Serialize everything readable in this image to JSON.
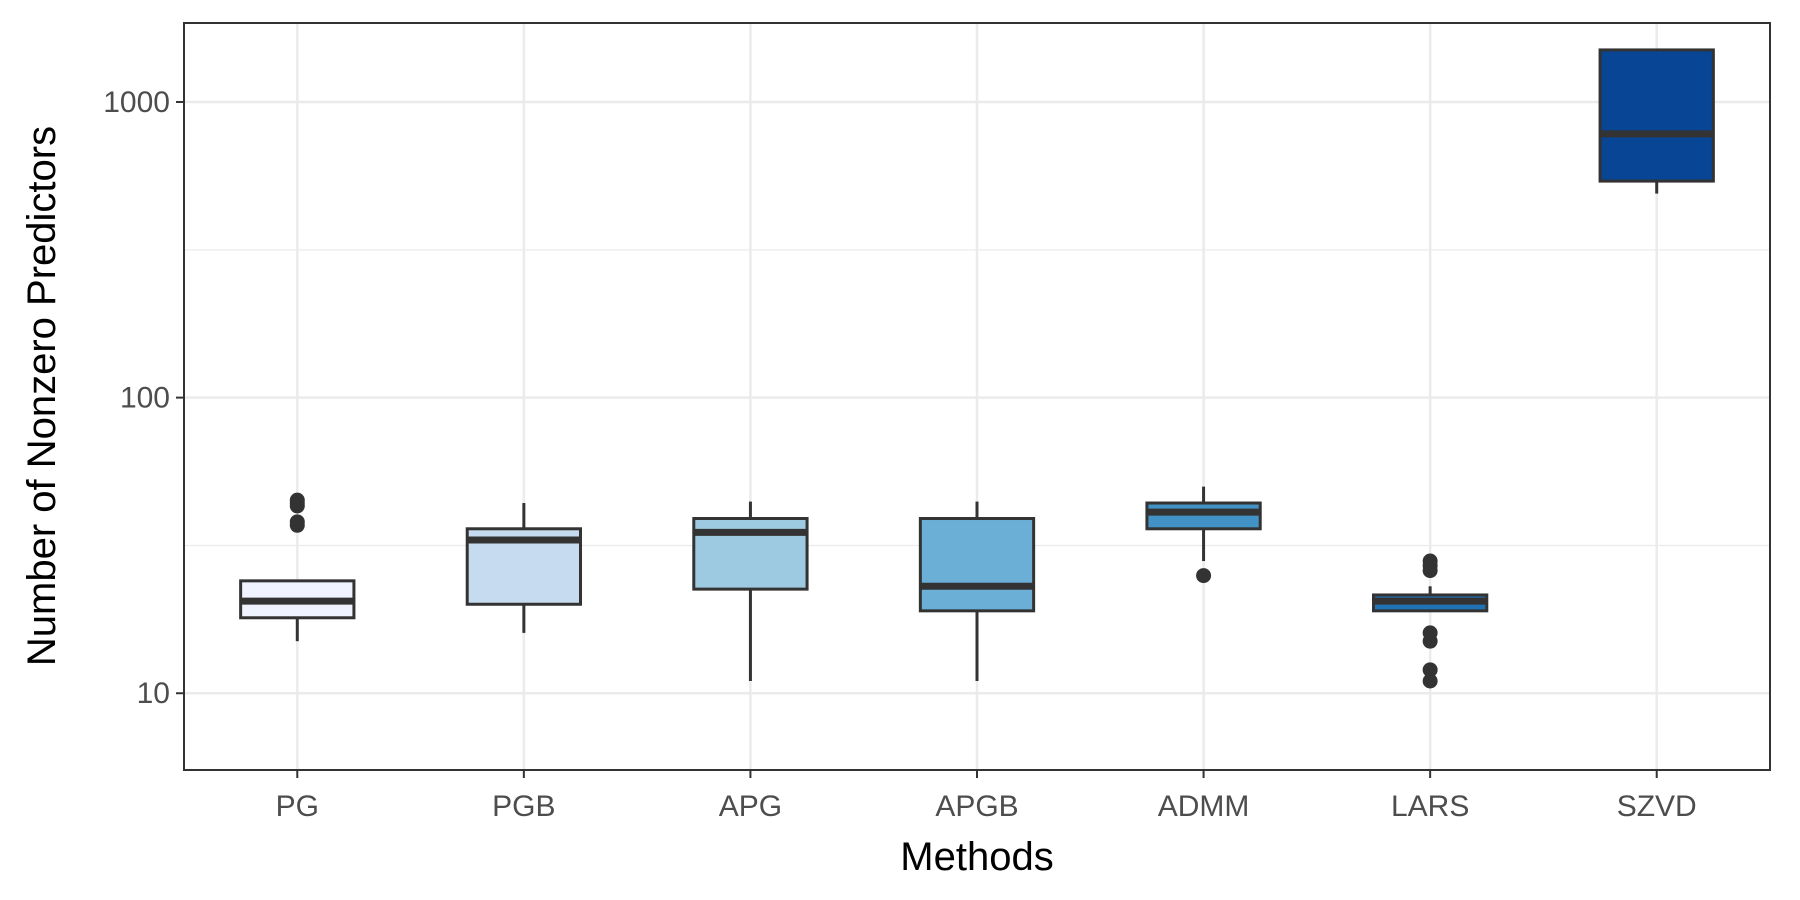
{
  "chart_data": {
    "type": "boxplot",
    "title": "",
    "xlabel": "Methods",
    "ylabel": "Number of Nonzero Predictors",
    "yscale": "log10",
    "ylim": [
      5.5,
      1850
    ],
    "yticks": [
      10,
      100,
      1000
    ],
    "yticks_minor": [
      31.6,
      316
    ],
    "ytick_labels": [
      "10",
      "100",
      "1000"
    ],
    "grid": true,
    "categories": [
      "PG",
      "PGB",
      "APG",
      "APGB",
      "ADMM",
      "LARS",
      "SZVD"
    ],
    "colors": [
      "#eff3ff",
      "#c6dbef",
      "#9ecae1",
      "#6baed6",
      "#4292c6",
      "#2171b5",
      "#084594"
    ],
    "boxes": [
      {
        "name": "PG",
        "whisker_low": 15,
        "q1": 18,
        "median": 20.5,
        "q3": 24,
        "whisker_high": 24,
        "outliers": [
          37,
          38,
          43,
          44,
          45
        ]
      },
      {
        "name": "PGB",
        "whisker_low": 16,
        "q1": 20,
        "median": 33,
        "q3": 36,
        "whisker_high": 44,
        "outliers": []
      },
      {
        "name": "APG",
        "whisker_low": 11,
        "q1": 22.5,
        "median": 35,
        "q3": 39,
        "whisker_high": 44.5,
        "outliers": []
      },
      {
        "name": "APGB",
        "whisker_low": 11,
        "q1": 19,
        "median": 23,
        "q3": 39,
        "whisker_high": 44.5,
        "outliers": []
      },
      {
        "name": "ADMM",
        "whisker_low": 28,
        "q1": 36,
        "median": 41,
        "q3": 44,
        "whisker_high": 50,
        "outliers": [
          25
        ]
      },
      {
        "name": "LARS",
        "whisker_low": 19,
        "q1": 19,
        "median": 20.5,
        "q3": 21.5,
        "whisker_high": 23,
        "outliers": [
          11,
          12,
          15,
          16,
          26,
          27,
          28
        ]
      },
      {
        "name": "SZVD",
        "whisker_low": 490,
        "q1": 540,
        "median": 780,
        "q3": 1500,
        "whisker_high": 1500,
        "outliers": []
      }
    ]
  }
}
